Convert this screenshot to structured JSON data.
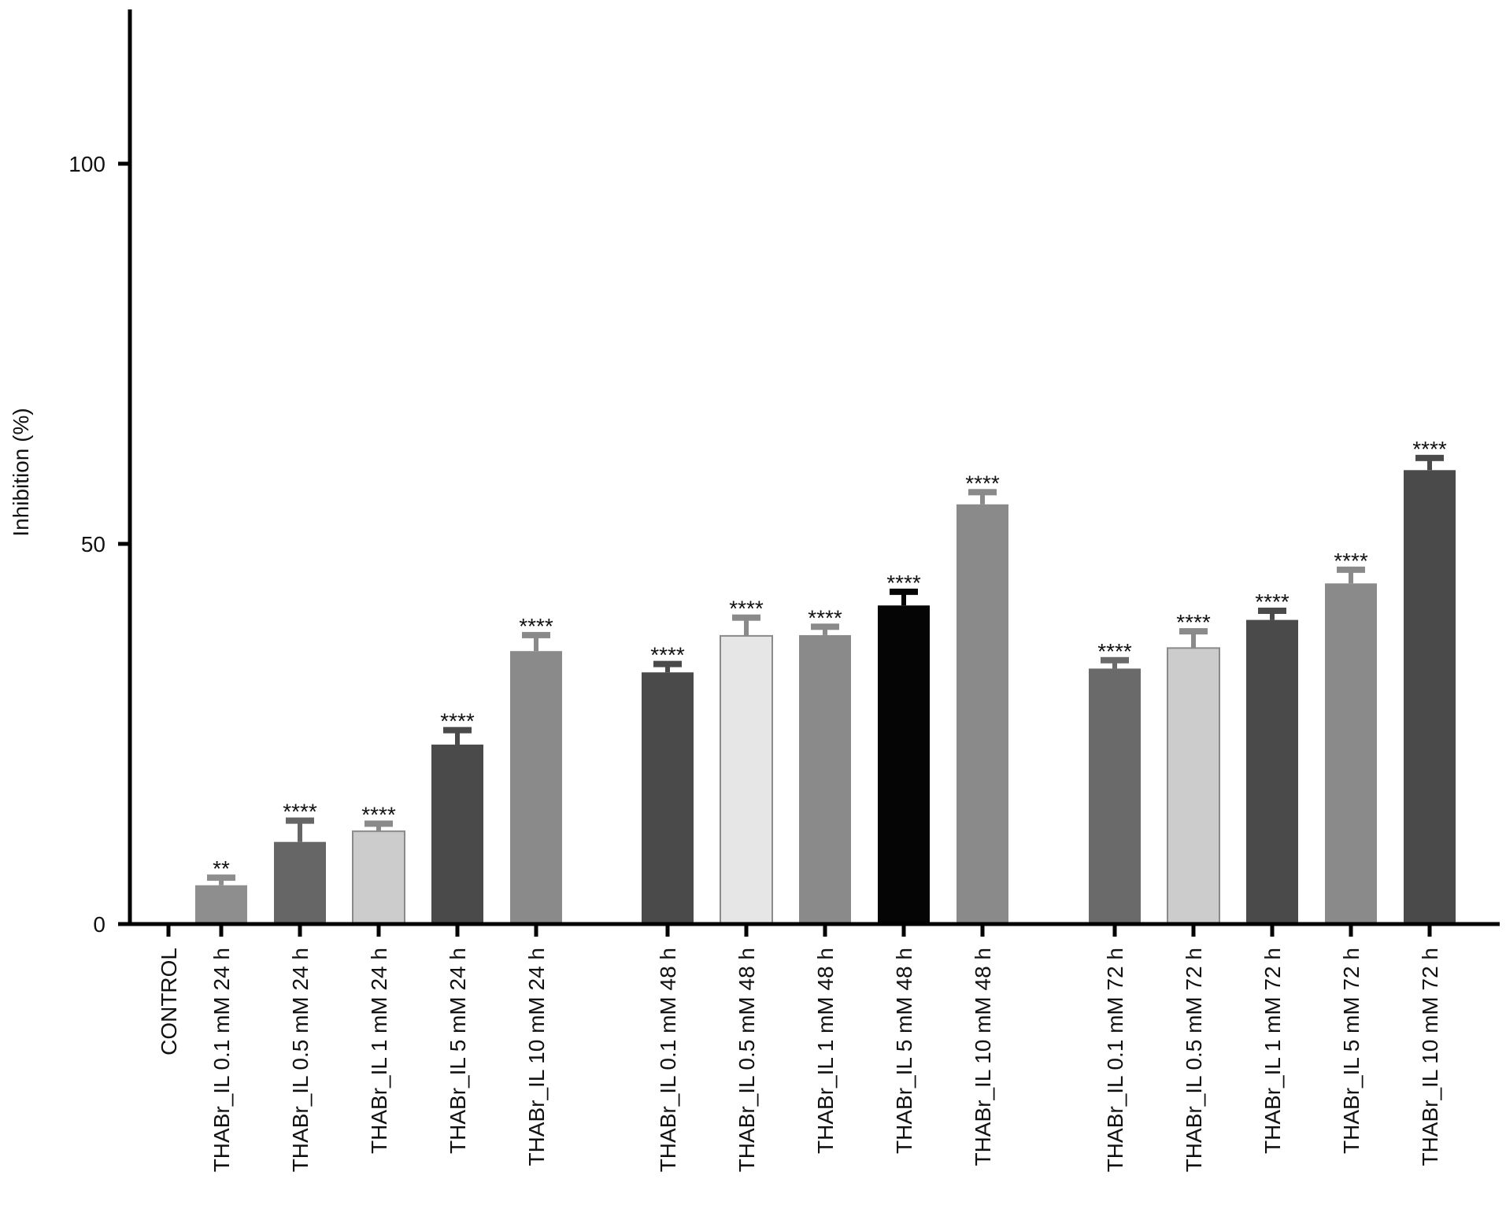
{
  "chart_data": {
    "type": "bar",
    "title": "",
    "xlabel": "",
    "ylabel": "Inhibition (%)",
    "ylim": [
      0,
      120
    ],
    "yticks": [
      0,
      50,
      100
    ],
    "grid": false,
    "categories": [
      "CONTROL",
      "THABr_IL 0.1 mM 24 h",
      "THABr_IL 0.5 mM 24 h",
      "THABr_IL 1 mM 24 h",
      "THABr_IL 5 mM 24 h",
      "THABr_IL 10 mM 24 h",
      "THABr_IL 0.1 mM 48 h",
      "THABr_IL 0.5 mM 48 h",
      "THABr_IL 1 mM 48 h",
      "THABr_IL 5 mM 48 h",
      "THABr_IL 10 mM 48 h",
      "THABr_IL 0.1 mM 72 h",
      "THABr_IL 0.5 mM 72 h",
      "THABr_IL 1 mM 72 h",
      "THABr_IL 5 mM 72 h",
      "THABr_IL 10 mM 72 h"
    ],
    "values": [
      0,
      5.1,
      10.8,
      12.2,
      23.6,
      35.9,
      33.1,
      37.9,
      38.0,
      41.9,
      55.2,
      33.6,
      36.3,
      40.0,
      44.8,
      59.7
    ],
    "errors": [
      0,
      1.0,
      2.8,
      1.0,
      1.9,
      2.1,
      1.1,
      2.4,
      1.1,
      1.8,
      1.6,
      1.1,
      2.2,
      1.2,
      1.8,
      1.6
    ],
    "significance": [
      "",
      "**",
      "****",
      "****",
      "****",
      "****",
      "****",
      "****",
      "****",
      "****",
      "****",
      "****",
      "****",
      "****",
      "****",
      "****"
    ],
    "bar_colors": [
      "#ffffff",
      "#8e8e8e",
      "#666666",
      "#cccccc",
      "#4a4a4a",
      "#8a8a8a",
      "#4a4a4a",
      "#e6e6e6",
      "#8a8a8a",
      "#050505",
      "#8a8a8a",
      "#6a6a6a",
      "#cccccc",
      "#4a4a4a",
      "#8a8a8a",
      "#4a4a4a"
    ],
    "error_colors": [
      "#111111",
      "#8e8e8e",
      "#666666",
      "#8a8a8a",
      "#4a4a4a",
      "#8a8a8a",
      "#4a4a4a",
      "#8a8a8a",
      "#8a8a8a",
      "#050505",
      "#8a8a8a",
      "#6a6a6a",
      "#8a8a8a",
      "#4a4a4a",
      "#8a8a8a",
      "#4a4a4a"
    ],
    "groups": [
      [
        0
      ],
      [
        1,
        2,
        3,
        4,
        5
      ],
      [
        6,
        7,
        8,
        9,
        10
      ],
      [
        11,
        12,
        13,
        14,
        15
      ]
    ]
  }
}
